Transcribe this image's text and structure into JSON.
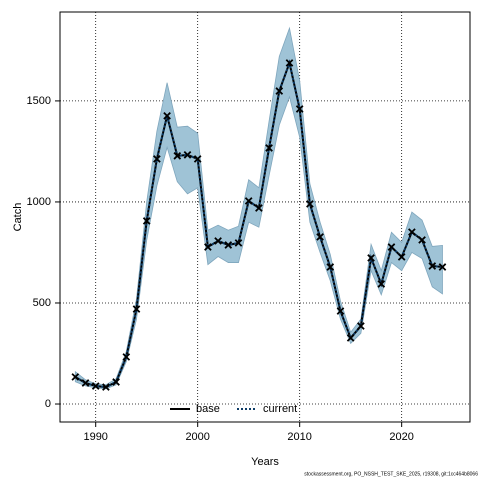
{
  "chart_data": {
    "type": "line",
    "xlabel": "Years",
    "ylabel": "Catch",
    "footnote": "stockassessment.org, PO_NSSH_TEST_SKE_2025, r19308, git:1cc464b8066",
    "x": [
      1988,
      1989,
      1990,
      1991,
      1992,
      1993,
      1994,
      1995,
      1996,
      1997,
      1998,
      1999,
      2000,
      2001,
      2002,
      2003,
      2004,
      2005,
      2006,
      2007,
      2008,
      2009,
      2010,
      2011,
      2012,
      2013,
      2014,
      2015,
      2016,
      2017,
      2018,
      2019,
      2020,
      2021,
      2022,
      2023,
      2024
    ],
    "series": [
      {
        "name": "base",
        "color": "#000000",
        "values": [
          134,
          104,
          89,
          84,
          109,
          233,
          470,
          906,
          1213,
          1426,
          1228,
          1233,
          1213,
          777,
          807,
          787,
          797,
          1005,
          970,
          1267,
          1549,
          1688,
          1460,
          990,
          827,
          678,
          460,
          327,
          386,
          723,
          594,
          777,
          728,
          851,
          812,
          683,
          678
        ]
      },
      {
        "name": "current",
        "color": "#0d3b66",
        "band_color": "#9fc3d6",
        "values": [
          134,
          104,
          89,
          84,
          109,
          233,
          470,
          906,
          1213,
          1426,
          1228,
          1233,
          1213,
          777,
          807,
          787,
          797,
          1005,
          970,
          1267,
          1549,
          1688,
          1460,
          990,
          827,
          678,
          460,
          327,
          386,
          723,
          594,
          777,
          728,
          851,
          812,
          683,
          678
        ],
        "upper": [
          160,
          120,
          100,
          95,
          125,
          260,
          520,
          1000,
          1350,
          1590,
          1370,
          1375,
          1340,
          860,
          885,
          860,
          880,
          1110,
          1070,
          1400,
          1720,
          1860,
          1600,
          1090,
          900,
          740,
          510,
          355,
          420,
          790,
          660,
          850,
          800,
          950,
          910,
          780,
          785
        ],
        "lower": [
          110,
          90,
          80,
          75,
          95,
          210,
          420,
          810,
          1080,
          1270,
          1100,
          1040,
          1070,
          690,
          730,
          700,
          700,
          900,
          875,
          1130,
          1380,
          1520,
          1320,
          900,
          750,
          610,
          420,
          300,
          350,
          660,
          540,
          700,
          660,
          750,
          720,
          580,
          545
        ]
      }
    ],
    "xlim": [
      1986.5,
      2026.7
    ],
    "xticks": [
      1990,
      2000,
      2010,
      2020
    ],
    "ylim": [
      -89,
      1940
    ],
    "yticks": [
      0,
      500,
      1000,
      1500
    ],
    "grid": true,
    "legend": "bottom"
  }
}
